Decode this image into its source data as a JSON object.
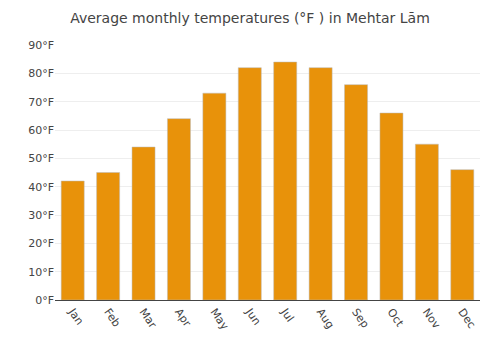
{
  "chart_data": {
    "type": "bar",
    "title": "Average monthly temperatures (°F ) in Mehtar Lām",
    "categories": [
      "Jan",
      "Feb",
      "Mar",
      "Apr",
      "May",
      "Jun",
      "Jul",
      "Aug",
      "Sep",
      "Oct",
      "Nov",
      "Dec"
    ],
    "values": [
      42,
      45,
      54,
      64,
      73,
      82,
      84,
      82,
      76,
      66,
      55,
      46
    ],
    "color": "#E8920A",
    "ylim": [
      0,
      90
    ],
    "yticks": [
      {
        "value": 0,
        "label": "0°F"
      },
      {
        "value": 10,
        "label": "10°F"
      },
      {
        "value": 20,
        "label": "20°F"
      },
      {
        "value": 30,
        "label": "30°F"
      },
      {
        "value": 40,
        "label": "40°F"
      },
      {
        "value": 50,
        "label": "50°F"
      },
      {
        "value": 60,
        "label": "60°F"
      },
      {
        "value": 70,
        "label": "70°F"
      },
      {
        "value": 80,
        "label": "80°F"
      },
      {
        "value": 90,
        "label": "90°F"
      }
    ],
    "grid": true
  }
}
